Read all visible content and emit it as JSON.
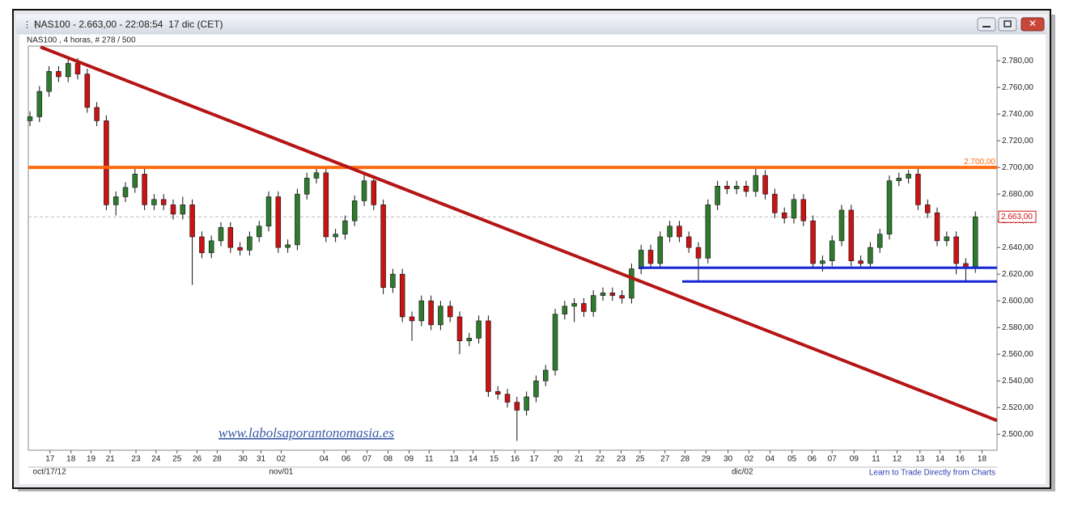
{
  "window_title": "NAS100 - 2.663,00 - 22:08:54  17 dic (CET)",
  "chart_data": {
    "type": "candlestick",
    "subtitle": "NAS100 , 4 horas, # 278 / 500",
    "watermark": "www.labolsaporantonomasia.es",
    "footer_link": "Learn to Trade Directly from Charts",
    "up_color": "#2f7a2f",
    "down_color": "#c81414",
    "candles": [
      [
        2735,
        2742,
        2731,
        2738
      ],
      [
        2738,
        2761,
        2734,
        2757
      ],
      [
        2757,
        2776,
        2753,
        2772
      ],
      [
        2772,
        2776,
        2764,
        2768
      ],
      [
        2768,
        2782,
        2764,
        2778
      ],
      [
        2778,
        2782,
        2766,
        2770
      ],
      [
        2770,
        2774,
        2741,
        2745
      ],
      [
        2745,
        2749,
        2731,
        2735
      ],
      [
        2735,
        2739,
        2668,
        2672
      ],
      [
        2672,
        2682,
        2664,
        2678
      ],
      [
        2678,
        2689,
        2674,
        2685
      ],
      [
        2685,
        2699,
        2681,
        2695
      ],
      [
        2695,
        2699,
        2668,
        2672
      ],
      [
        2672,
        2680,
        2668,
        2676
      ],
      [
        2676,
        2680,
        2668,
        2672
      ],
      [
        2672,
        2676,
        2661,
        2665
      ],
      [
        2665,
        2678,
        2661,
        2672
      ],
      [
        2672,
        2676,
        2612,
        2648
      ],
      [
        2648,
        2652,
        2632,
        2636
      ],
      [
        2636,
        2649,
        2632,
        2645
      ],
      [
        2645,
        2659,
        2641,
        2655
      ],
      [
        2655,
        2659,
        2636,
        2640
      ],
      [
        2640,
        2644,
        2634,
        2638
      ],
      [
        2638,
        2652,
        2634,
        2648
      ],
      [
        2648,
        2660,
        2644,
        2656
      ],
      [
        2656,
        2682,
        2652,
        2678
      ],
      [
        2678,
        2682,
        2636,
        2640
      ],
      [
        2640,
        2646,
        2636,
        2642
      ],
      [
        2642,
        2684,
        2638,
        2680
      ],
      [
        2680,
        2696,
        2676,
        2692
      ],
      [
        2692,
        2700,
        2688,
        2696
      ],
      [
        2696,
        2700,
        2644,
        2648
      ],
      [
        2648,
        2654,
        2644,
        2650
      ],
      [
        2650,
        2664,
        2646,
        2660
      ],
      [
        2660,
        2679,
        2656,
        2675
      ],
      [
        2675,
        2696,
        2671,
        2690
      ],
      [
        2690,
        2694,
        2668,
        2672
      ],
      [
        2672,
        2676,
        2605,
        2610
      ],
      [
        2610,
        2624,
        2606,
        2620
      ],
      [
        2620,
        2624,
        2584,
        2588
      ],
      [
        2588,
        2592,
        2570,
        2585
      ],
      [
        2585,
        2604,
        2581,
        2600
      ],
      [
        2600,
        2604,
        2578,
        2582
      ],
      [
        2582,
        2600,
        2578,
        2596
      ],
      [
        2596,
        2600,
        2584,
        2588
      ],
      [
        2588,
        2592,
        2560,
        2570
      ],
      [
        2570,
        2576,
        2566,
        2572
      ],
      [
        2572,
        2589,
        2568,
        2585
      ],
      [
        2585,
        2589,
        2528,
        2532
      ],
      [
        2532,
        2536,
        2526,
        2530
      ],
      [
        2530,
        2534,
        2520,
        2524
      ],
      [
        2524,
        2528,
        2495,
        2518
      ],
      [
        2518,
        2532,
        2514,
        2528
      ],
      [
        2528,
        2544,
        2524,
        2540
      ],
      [
        2540,
        2552,
        2536,
        2548
      ],
      [
        2548,
        2594,
        2544,
        2590
      ],
      [
        2590,
        2600,
        2586,
        2596
      ],
      [
        2596,
        2602,
        2584,
        2598
      ],
      [
        2598,
        2602,
        2588,
        2592
      ],
      [
        2592,
        2608,
        2588,
        2604
      ],
      [
        2604,
        2610,
        2600,
        2606
      ],
      [
        2606,
        2610,
        2600,
        2604
      ],
      [
        2604,
        2608,
        2598,
        2602
      ],
      [
        2602,
        2628,
        2598,
        2624
      ],
      [
        2624,
        2642,
        2620,
        2638
      ],
      [
        2638,
        2642,
        2624,
        2628
      ],
      [
        2628,
        2652,
        2624,
        2648
      ],
      [
        2648,
        2660,
        2644,
        2656
      ],
      [
        2656,
        2660,
        2644,
        2648
      ],
      [
        2648,
        2652,
        2636,
        2640
      ],
      [
        2640,
        2644,
        2614,
        2632
      ],
      [
        2632,
        2676,
        2628,
        2672
      ],
      [
        2672,
        2690,
        2668,
        2686
      ],
      [
        2686,
        2690,
        2680,
        2684
      ],
      [
        2684,
        2690,
        2680,
        2686
      ],
      [
        2686,
        2690,
        2678,
        2682
      ],
      [
        2682,
        2699,
        2678,
        2694
      ],
      [
        2694,
        2698,
        2676,
        2680
      ],
      [
        2680,
        2684,
        2662,
        2666
      ],
      [
        2666,
        2670,
        2658,
        2662
      ],
      [
        2662,
        2680,
        2658,
        2676
      ],
      [
        2676,
        2680,
        2656,
        2660
      ],
      [
        2660,
        2664,
        2624,
        2628
      ],
      [
        2628,
        2634,
        2622,
        2630
      ],
      [
        2630,
        2649,
        2626,
        2645
      ],
      [
        2645,
        2672,
        2641,
        2668
      ],
      [
        2668,
        2672,
        2626,
        2630
      ],
      [
        2630,
        2634,
        2624,
        2628
      ],
      [
        2628,
        2644,
        2624,
        2640
      ],
      [
        2640,
        2654,
        2636,
        2650
      ],
      [
        2650,
        2694,
        2646,
        2690
      ],
      [
        2690,
        2696,
        2686,
        2692
      ],
      [
        2692,
        2698,
        2688,
        2695
      ],
      [
        2695,
        2699,
        2668,
        2672
      ],
      [
        2672,
        2676,
        2662,
        2666
      ],
      [
        2666,
        2670,
        2641,
        2645
      ],
      [
        2645,
        2652,
        2641,
        2648
      ],
      [
        2648,
        2652,
        2620,
        2628
      ],
      [
        2628,
        2632,
        2614,
        2625
      ],
      [
        2625,
        2667,
        2621,
        2663
      ]
    ],
    "xlim": [
      -0.17,
      101.27
    ],
    "ylim": [
      2488,
      2791
    ],
    "yticks": [
      {
        "value": 2500,
        "label": "2.500,00"
      },
      {
        "value": 2520,
        "label": "2.520,00"
      },
      {
        "value": 2540,
        "label": "2.540,00"
      },
      {
        "value": 2560,
        "label": "2.560,00"
      },
      {
        "value": 2580,
        "label": "2.580,00"
      },
      {
        "value": 2600,
        "label": "2.600,00"
      },
      {
        "value": 2620,
        "label": "2.620,00"
      },
      {
        "value": 2640,
        "label": "2.640,00"
      },
      {
        "value": 2660,
        "label": "2.660,00"
      },
      {
        "value": 2680,
        "label": "2.680,00"
      },
      {
        "value": 2700,
        "label": "2.700,00"
      },
      {
        "value": 2720,
        "label": "2.720,00"
      },
      {
        "value": 2740,
        "label": "2.740,00"
      },
      {
        "value": 2760,
        "label": "2.760,00"
      },
      {
        "value": 2780,
        "label": "2.780,00"
      }
    ],
    "xticks": [
      {
        "value": 2.1,
        "label": "17"
      },
      {
        "value": 4.3,
        "label": "18"
      },
      {
        "value": 6.4,
        "label": "19"
      },
      {
        "value": 8.4,
        "label": "21"
      },
      {
        "value": 11.1,
        "label": "23"
      },
      {
        "value": 13.2,
        "label": "24"
      },
      {
        "value": 15.4,
        "label": "25"
      },
      {
        "value": 17.5,
        "label": "26"
      },
      {
        "value": 19.6,
        "label": "28"
      },
      {
        "value": 22.3,
        "label": "30"
      },
      {
        "value": 24.2,
        "label": "31"
      },
      {
        "value": 26.3,
        "label": "02"
      },
      {
        "value": 30.8,
        "label": "04"
      },
      {
        "value": 33.1,
        "label": "06"
      },
      {
        "value": 35.3,
        "label": "07"
      },
      {
        "value": 37.5,
        "label": "08"
      },
      {
        "value": 39.7,
        "label": "09"
      },
      {
        "value": 41.8,
        "label": "11"
      },
      {
        "value": 44.4,
        "label": "13"
      },
      {
        "value": 46.4,
        "label": "14"
      },
      {
        "value": 48.6,
        "label": "15"
      },
      {
        "value": 50.8,
        "label": "16"
      },
      {
        "value": 52.8,
        "label": "17"
      },
      {
        "value": 55.3,
        "label": "20"
      },
      {
        "value": 57.5,
        "label": "21"
      },
      {
        "value": 59.7,
        "label": "22"
      },
      {
        "value": 61.9,
        "label": "23"
      },
      {
        "value": 63.9,
        "label": "25"
      },
      {
        "value": 66.5,
        "label": "27"
      },
      {
        "value": 68.6,
        "label": "28"
      },
      {
        "value": 70.8,
        "label": "29"
      },
      {
        "value": 73.1,
        "label": "30"
      },
      {
        "value": 75.3,
        "label": "02"
      },
      {
        "value": 77.5,
        "label": "04"
      },
      {
        "value": 79.8,
        "label": "05"
      },
      {
        "value": 81.9,
        "label": "06"
      },
      {
        "value": 84.0,
        "label": "07"
      },
      {
        "value": 86.3,
        "label": "09"
      },
      {
        "value": 88.6,
        "label": "11"
      },
      {
        "value": 90.8,
        "label": "12"
      },
      {
        "value": 93.2,
        "label": "13"
      },
      {
        "value": 95.3,
        "label": "14"
      },
      {
        "value": 97.4,
        "label": "16"
      },
      {
        "value": 99.7,
        "label": "18"
      }
    ],
    "period_labels": [
      {
        "value": 0.3,
        "label": "oct/17/12"
      },
      {
        "value": 26.3,
        "label": "nov/01"
      },
      {
        "value": 74.6,
        "label": "dic/02"
      }
    ],
    "lines": [
      {
        "color": "#b51515",
        "width": 4,
        "points": [
          [
            1.1,
            2790.3
          ],
          [
            101.27,
            2510.3
          ]
        ]
      },
      {
        "color": "#1426d6",
        "width": 3,
        "points": [
          [
            63.8,
            2624.8
          ],
          [
            101.27,
            2624.8
          ]
        ]
      },
      {
        "color": "#1426d6",
        "width": 3,
        "points": [
          [
            68.3,
            2614.5
          ],
          [
            101.27,
            2614.5
          ]
        ]
      }
    ],
    "level": {
      "value": 2700,
      "label": "2.700,00",
      "color": "#ff6a10"
    },
    "last_price": {
      "value": 2663,
      "label": "2.663,00",
      "color": "#d01010"
    }
  }
}
